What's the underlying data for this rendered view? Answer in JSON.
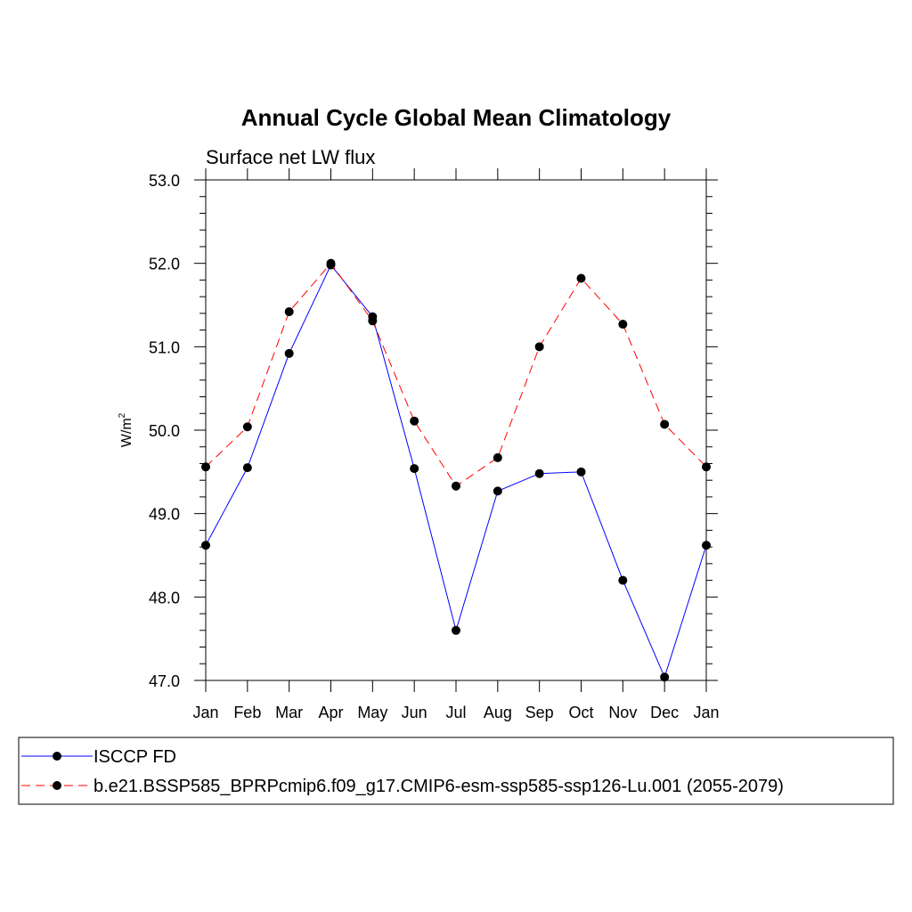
{
  "chart_data": {
    "type": "line",
    "title": "Annual Cycle Global Mean Climatology",
    "subtitle": "Surface net LW flux",
    "ylabel_base": "W/m",
    "ylabel_sup": "2",
    "xlabel": "",
    "categories": [
      "Jan",
      "Feb",
      "Mar",
      "Apr",
      "May",
      "Jun",
      "Jul",
      "Aug",
      "Sep",
      "Oct",
      "Nov",
      "Dec",
      "Jan"
    ],
    "ylim": [
      47.0,
      53.0
    ],
    "yticks": [
      "47.0",
      "48.0",
      "49.0",
      "50.0",
      "51.0",
      "52.0",
      "53.0"
    ],
    "grid": false,
    "legend_position": "bottom",
    "series": [
      {
        "name": "ISCCP FD",
        "color": "#0000ff",
        "style": "solid",
        "values": [
          48.62,
          49.55,
          50.92,
          51.98,
          51.36,
          49.54,
          47.6,
          49.27,
          49.48,
          49.5,
          48.2,
          47.04,
          48.62
        ]
      },
      {
        "name": "b.e21.BSSP585_BPRPcmip6.f09_g17.CMIP6-esm-ssp585-ssp126-Lu.001 (2055-2079)",
        "color": "#ff0000",
        "style": "dashed",
        "values": [
          49.56,
          50.04,
          51.42,
          52.0,
          51.31,
          50.11,
          49.33,
          49.67,
          51.0,
          51.82,
          51.27,
          50.07,
          49.56
        ]
      }
    ]
  }
}
